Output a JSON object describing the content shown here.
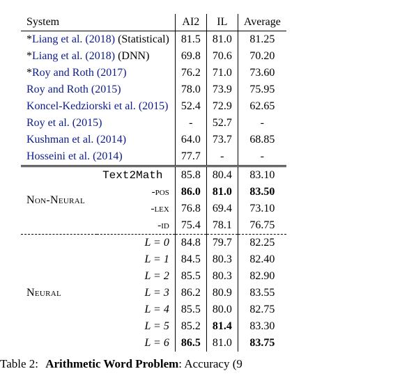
{
  "header": {
    "system": "System",
    "ai2": "AI2",
    "il": "IL",
    "avg": "Average"
  },
  "prior": [
    {
      "star": "*",
      "cite": "Liang et al. (2018)",
      "note": " (Statistical)",
      "ai2": "81.5",
      "il": "81.0",
      "avg": "81.25"
    },
    {
      "star": "*",
      "cite": "Liang et al. (2018)",
      "note": " (DNN)",
      "ai2": "69.8",
      "il": "70.6",
      "avg": "70.20"
    },
    {
      "star": "*",
      "cite": "Roy and Roth (2017)",
      "note": "",
      "ai2": "76.2",
      "il": "71.0",
      "avg": "73.60"
    },
    {
      "star": "",
      "cite": "Roy and Roth (2015)",
      "note": "",
      "ai2": "78.0",
      "il": "73.9",
      "avg": "75.95"
    },
    {
      "star": "",
      "cite": "Koncel-Kedziorski et al. (2015)",
      "note": "",
      "ai2": "52.4",
      "il": "72.9",
      "avg": "62.65"
    },
    {
      "star": "",
      "cite": "Roy et al. (2015)",
      "note": "",
      "ai2": "-",
      "il": "52.7",
      "avg": "-"
    },
    {
      "star": "",
      "cite": "Kushman et al. (2014)",
      "note": "",
      "ai2": "64.0",
      "il": "73.7",
      "avg": "68.85"
    },
    {
      "star": "",
      "cite": "Hosseini et al. (2014)",
      "note": "",
      "ai2": "77.7",
      "il": "-",
      "avg": "-"
    }
  ],
  "nonneural": {
    "label": "Non-Neural",
    "rows": [
      {
        "name": "Text2Math",
        "tt": true,
        "ai2": "85.8",
        "il": "80.4",
        "avg": "83.10",
        "bold": {}
      },
      {
        "name": "-pos",
        "tt": false,
        "ai2": "86.0",
        "il": "81.0",
        "avg": "83.50",
        "bold": {
          "ai2": true,
          "il": true,
          "avg": true
        }
      },
      {
        "name": "-lex",
        "tt": false,
        "ai2": "76.8",
        "il": "69.4",
        "avg": "73.10",
        "bold": {}
      },
      {
        "name": "-id",
        "tt": false,
        "ai2": "75.4",
        "il": "78.1",
        "avg": "76.75",
        "bold": {}
      }
    ]
  },
  "neural": {
    "label": "Neural",
    "rows": [
      {
        "l": "L = 0",
        "ai2": "84.8",
        "il": "79.7",
        "avg": "82.25",
        "bold": {}
      },
      {
        "l": "L = 1",
        "ai2": "84.5",
        "il": "80.3",
        "avg": "82.40",
        "bold": {}
      },
      {
        "l": "L = 2",
        "ai2": "85.5",
        "il": "80.3",
        "avg": "82.90",
        "bold": {}
      },
      {
        "l": "L = 3",
        "ai2": "86.2",
        "il": "80.9",
        "avg": "83.55",
        "bold": {}
      },
      {
        "l": "L = 4",
        "ai2": "85.5",
        "il": "80.0",
        "avg": "82.75",
        "bold": {}
      },
      {
        "l": "L = 5",
        "ai2": "85.2",
        "il": "81.4",
        "avg": "83.30",
        "bold": {
          "il": true
        }
      },
      {
        "l": "L = 6",
        "ai2": "86.5",
        "il": "81.0",
        "avg": "83.75",
        "bold": {
          "ai2": true,
          "avg": true
        }
      }
    ]
  },
  "caption": {
    "label": "Table 2:",
    "title": "Arithmetic Word Problem",
    "tail": ":  Accuracy (9"
  },
  "colors": {
    "link": "#0c1b8e"
  }
}
